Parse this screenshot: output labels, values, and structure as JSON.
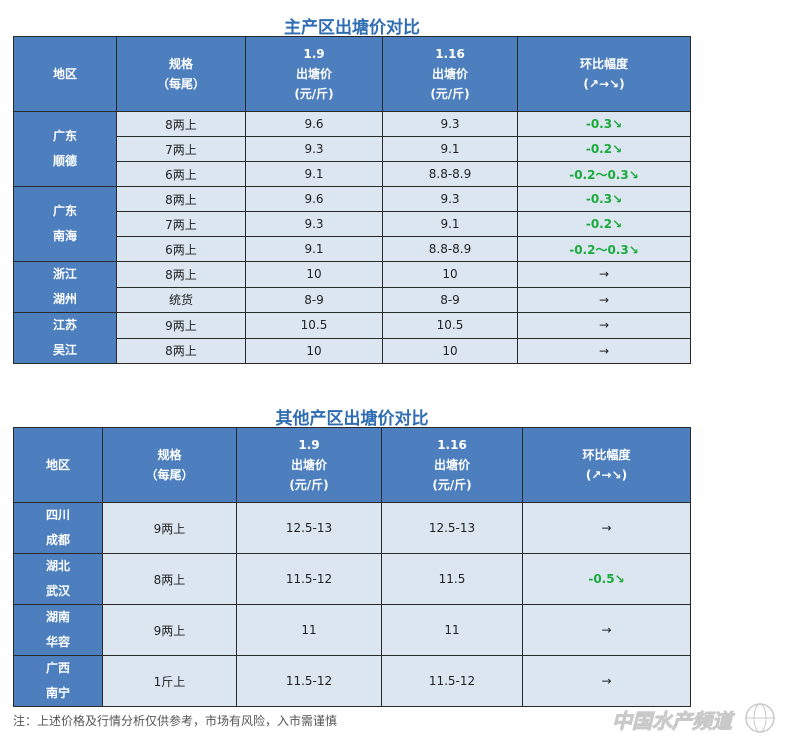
{
  "table1": {
    "title": "主产区出塘价对比",
    "headers": {
      "region": "地区",
      "spec": "规格",
      "spec_sub": "（每尾）",
      "date1": "1.9",
      "date2": "1.16",
      "price": "出塘价",
      "unit": "(元/斤)",
      "change": "环比幅度",
      "change_sub": "(↗→↘)"
    },
    "groups": [
      {
        "region_line1": "广东",
        "region_line2": "顺德",
        "rows": [
          {
            "spec": "8两上",
            "p1": "9.6",
            "p2": "9.3",
            "change": "-0.3↘",
            "trend": "down"
          },
          {
            "spec": "7两上",
            "p1": "9.3",
            "p2": "9.1",
            "change": "-0.2↘",
            "trend": "down"
          },
          {
            "spec": "6两上",
            "p1": "9.1",
            "p2": "8.8-8.9",
            "change": "-0.2～0.3↘",
            "trend": "down"
          }
        ]
      },
      {
        "region_line1": "广东",
        "region_line2": "南海",
        "rows": [
          {
            "spec": "8两上",
            "p1": "9.6",
            "p2": "9.3",
            "change": "-0.3↘",
            "trend": "down"
          },
          {
            "spec": "7两上",
            "p1": "9.3",
            "p2": "9.1",
            "change": "-0.2↘",
            "trend": "down"
          },
          {
            "spec": "6两上",
            "p1": "9.1",
            "p2": "8.8-8.9",
            "change": "-0.2～0.3↘",
            "trend": "down"
          }
        ]
      },
      {
        "region_line1": "浙江",
        "region_line2": "湖州",
        "rows": [
          {
            "spec": "8两上",
            "p1": "10",
            "p2": "10",
            "change": "→",
            "trend": "flat"
          },
          {
            "spec": "统货",
            "p1": "8-9",
            "p2": "8-9",
            "change": "→",
            "trend": "flat"
          }
        ]
      },
      {
        "region_line1": "江苏",
        "region_line2": "吴江",
        "rows": [
          {
            "spec": "9两上",
            "p1": "10.5",
            "p2": "10.5",
            "change": "→",
            "trend": "flat"
          },
          {
            "spec": "8两上",
            "p1": "10",
            "p2": "10",
            "change": "→",
            "trend": "flat"
          }
        ]
      }
    ]
  },
  "table2": {
    "title": "其他产区出塘价对比",
    "headers": {
      "region": "地区",
      "spec": "规格",
      "spec_sub": "（每尾）",
      "date1": "1.9",
      "date2": "1.16",
      "price": "出塘价",
      "unit": "(元/斤)",
      "change": "环比幅度",
      "change_sub": "(↗→↘)"
    },
    "rows": [
      {
        "region_line1": "四川",
        "region_line2": "成都",
        "spec": "9两上",
        "p1": "12.5-13",
        "p2": "12.5-13",
        "change": "→",
        "trend": "flat"
      },
      {
        "region_line1": "湖北",
        "region_line2": "武汉",
        "spec": "8两上",
        "p1": "11.5-12",
        "p2": "11.5",
        "change": "-0.5↘",
        "trend": "down"
      },
      {
        "region_line1": "湖南",
        "region_line2": "华容",
        "spec": "9两上",
        "p1": "11",
        "p2": "11",
        "change": "→",
        "trend": "flat"
      },
      {
        "region_line1": "广西",
        "region_line2": "南宁",
        "spec": "1斤上",
        "p1": "11.5-12",
        "p2": "11.5-12",
        "change": "→",
        "trend": "flat"
      }
    ]
  },
  "footnote": "注：上述价格及行情分析仅供参考，市场有风险，入市需谨慎",
  "watermark": {
    "text": "中国水产频道",
    "icon": "globe-logo-icon"
  },
  "colors": {
    "header_bg": "#4d7fbf",
    "cell_bg": "#dce6f1",
    "title": "#2f6db3",
    "down": "#1aaa3c"
  }
}
